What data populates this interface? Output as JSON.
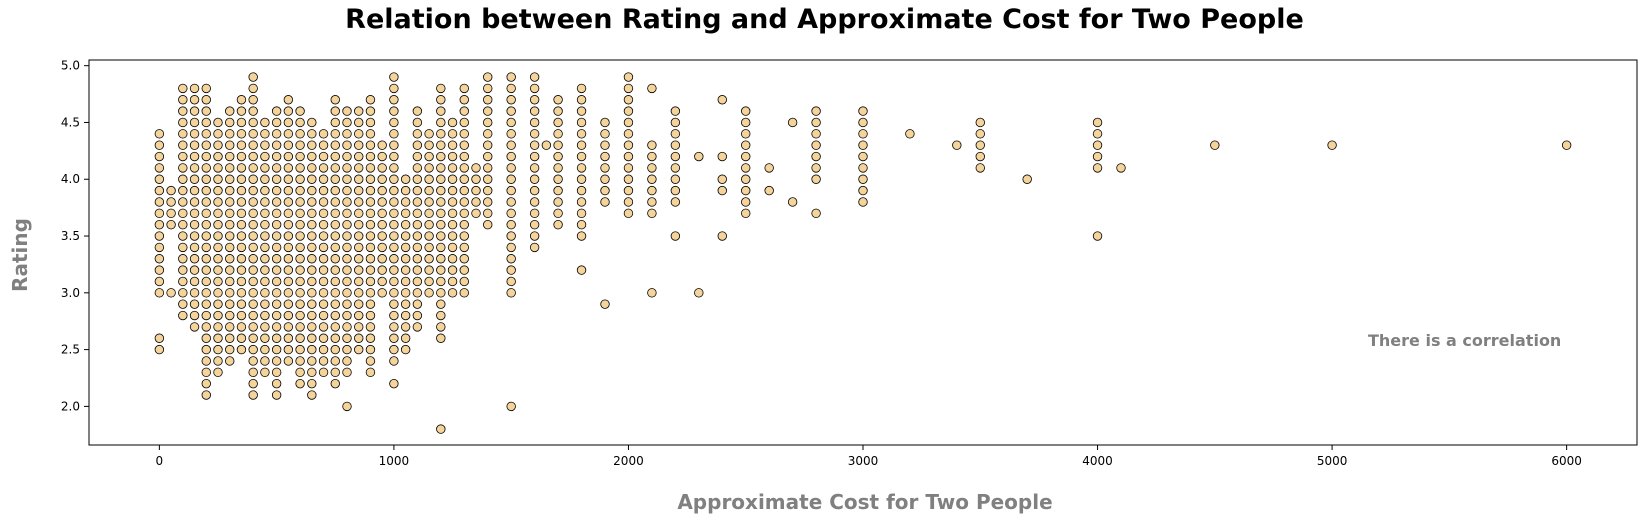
{
  "chart_data": {
    "type": "scatter",
    "title": "Relation between Rating and Approximate Cost for Two People",
    "xlabel": "Approximate Cost for Two People",
    "ylabel": "Rating",
    "annotation": "There is a correlation",
    "xlim": [
      -300,
      6300
    ],
    "ylim": [
      1.66,
      5.05
    ],
    "xticks": [
      0,
      1000,
      2000,
      3000,
      4000,
      5000,
      6000
    ],
    "yticks": [
      2.0,
      2.5,
      3.0,
      3.5,
      4.0,
      4.5,
      5.0
    ],
    "grid": false,
    "marker_color": "#f5d49b",
    "marker_edge_color": "#000000",
    "series": [
      {
        "ranges": [
          [
            0,
            3.0,
            4.4
          ],
          [
            0,
            2.5,
            2.6
          ],
          [
            50,
            3.6,
            3.9
          ],
          [
            50,
            3.0,
            3.0
          ],
          [
            100,
            2.8,
            4.8
          ],
          [
            150,
            2.7,
            4.8
          ],
          [
            200,
            2.1,
            4.8
          ],
          [
            250,
            2.3,
            4.5
          ],
          [
            300,
            2.4,
            4.6
          ],
          [
            350,
            2.5,
            4.7
          ],
          [
            400,
            2.1,
            4.9
          ],
          [
            450,
            2.3,
            4.5
          ],
          [
            500,
            2.1,
            4.6
          ],
          [
            550,
            2.4,
            4.7
          ],
          [
            600,
            2.2,
            4.6
          ],
          [
            650,
            2.1,
            4.5
          ],
          [
            700,
            2.3,
            4.4
          ],
          [
            750,
            2.2,
            4.7
          ],
          [
            800,
            2.3,
            4.6
          ],
          [
            850,
            2.5,
            4.6
          ],
          [
            900,
            2.3,
            4.7
          ],
          [
            950,
            3.0,
            4.3
          ],
          [
            1000,
            2.4,
            4.9
          ],
          [
            1050,
            2.5,
            4.0
          ],
          [
            1100,
            2.7,
            4.6
          ],
          [
            1150,
            3.0,
            4.4
          ],
          [
            1200,
            2.6,
            4.8
          ],
          [
            1250,
            3.0,
            4.5
          ],
          [
            1300,
            3.0,
            4.8
          ],
          [
            1350,
            3.7,
            4.1
          ],
          [
            1400,
            3.6,
            4.9
          ],
          [
            1500,
            3.0,
            4.9
          ],
          [
            1600,
            3.4,
            4.9
          ],
          [
            1700,
            3.6,
            4.7
          ],
          [
            1800,
            3.5,
            4.8
          ],
          [
            1900,
            3.8,
            4.5
          ],
          [
            2000,
            3.7,
            4.9
          ],
          [
            2100,
            3.7,
            4.3
          ],
          [
            2200,
            3.8,
            4.6
          ],
          [
            2500,
            3.7,
            4.6
          ],
          [
            2800,
            4.0,
            4.6
          ],
          [
            3000,
            3.8,
            4.6
          ],
          [
            3500,
            4.1,
            4.5
          ],
          [
            4000,
            4.1,
            4.5
          ]
        ]
      },
      {
        "points": [
          [
            1200,
            1.8
          ],
          [
            1500,
            2.0
          ],
          [
            800,
            2.0
          ],
          [
            200,
            2.1
          ],
          [
            200,
            2.2
          ],
          [
            1000,
            2.2
          ],
          [
            1200,
            2.8
          ],
          [
            1200,
            3.1
          ],
          [
            1500,
            2.0
          ],
          [
            1900,
            2.9
          ],
          [
            1800,
            3.2
          ],
          [
            2100,
            3.0
          ],
          [
            2100,
            4.8
          ],
          [
            2300,
            3.0
          ],
          [
            2300,
            4.2
          ],
          [
            2200,
            3.5
          ],
          [
            2400,
            3.5
          ],
          [
            2400,
            3.9
          ],
          [
            2400,
            4.0
          ],
          [
            2400,
            4.2
          ],
          [
            2400,
            4.7
          ],
          [
            2600,
            3.9
          ],
          [
            2600,
            4.1
          ],
          [
            2700,
            3.8
          ],
          [
            2700,
            4.5
          ],
          [
            2800,
            3.7
          ],
          [
            3200,
            4.4
          ],
          [
            3400,
            4.3
          ],
          [
            3700,
            4.0
          ],
          [
            4000,
            3.5
          ],
          [
            4100,
            4.1
          ],
          [
            4500,
            4.3
          ],
          [
            5000,
            4.3
          ],
          [
            6000,
            4.3
          ],
          [
            1650,
            4.3
          ],
          [
            2100,
            4.0
          ],
          [
            2100,
            4.1
          ]
        ]
      }
    ]
  }
}
